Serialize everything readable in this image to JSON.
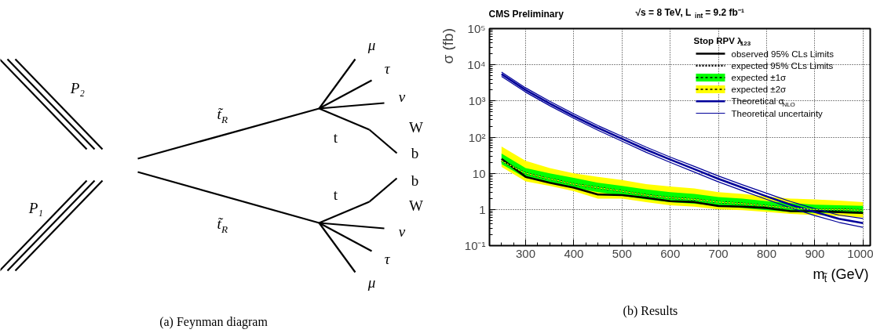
{
  "chart_data": [
    {
      "type": "other",
      "title": "(a) Feynman diagram",
      "annotations": [
        "P₂",
        "P₁",
        "t̃$_{R}$",
        "t̃$_{R}$",
        "μ",
        "τ",
        "ν",
        "W",
        "t",
        "b",
        "b",
        "t",
        "W",
        "ν",
        "τ",
        "μ"
      ]
    },
    {
      "type": "line",
      "title": "CMS Preliminary",
      "subtitle": "√s = 8 TeV, L$_{int}$ = 9.2 fb⁻¹",
      "annotations": [
        "(b) Results"
      ],
      "xlabel": "m$_{t̃}$ (GeV)",
      "ylabel": "σ (fb)",
      "legend_title": "Stop RPV λ$_{123}$",
      "x": [
        250,
        300,
        350,
        400,
        450,
        500,
        550,
        600,
        650,
        700,
        750,
        800,
        850,
        900,
        950,
        1000
      ],
      "log": "y",
      "grid": true,
      "legend": "top right",
      "xlim": [
        225,
        1015
      ],
      "xticks": [
        300,
        400,
        500,
        600,
        700,
        800,
        900,
        1000
      ],
      "ylim": [
        0.1,
        100000
      ],
      "yticks": [
        {
          "value": 0.1,
          "label": "10⁻¹"
        },
        1,
        10,
        {
          "value": 100,
          "label": "10²"
        },
        {
          "value": 1000,
          "label": "10³"
        },
        {
          "value": 10000,
          "label": "10⁴"
        },
        {
          "value": 100000,
          "label": "10⁵"
        }
      ],
      "series": [
        {
          "name": "observed 95% CLs Limits",
          "type": "line",
          "color": "#000000",
          "line_style": "solid",
          "values": [
            25,
            8,
            5.5,
            4,
            2.6,
            2.5,
            2.1,
            1.7,
            1.6,
            1.25,
            1.2,
            1.1,
            0.9,
            0.9,
            0.85,
            0.8
          ]
        },
        {
          "name": "expected 95% CLs Limits",
          "type": "line",
          "color": "#000000",
          "line_style": "dotted",
          "values": [
            22,
            10,
            7,
            5,
            4,
            3.2,
            2.5,
            2.1,
            1.9,
            1.6,
            1.45,
            1.25,
            1.1,
            1.0,
            1.0,
            0.95
          ]
        },
        {
          "name": "expected ±1σ",
          "type": "line",
          "color": "#00ff00",
          "line_style": "dotted",
          "values": [
            22,
            10,
            7,
            5,
            4,
            3.2,
            2.5,
            2.1,
            1.9,
            1.6,
            1.45,
            1.25,
            1.1,
            1.0,
            1.0,
            0.95
          ],
          "lower": [
            18,
            7.5,
            5.5,
            4,
            3,
            2.4,
            1.9,
            1.6,
            1.45,
            1.25,
            1.1,
            0.95,
            0.85,
            0.8,
            0.8,
            0.75
          ],
          "upper": [
            35,
            14,
            10,
            7.5,
            5.5,
            4.5,
            3.6,
            3.0,
            2.7,
            2.2,
            2.0,
            1.7,
            1.5,
            1.35,
            1.3,
            1.25
          ]
        },
        {
          "name": "expected ±2σ",
          "type": "line",
          "color": "#ffff00",
          "line_style": "dotted",
          "values": [
            22,
            10,
            7,
            5,
            4,
            3.2,
            2.5,
            2.1,
            1.9,
            1.6,
            1.45,
            1.25,
            1.1,
            1.0,
            1.0,
            0.95
          ],
          "lower": [
            15,
            6,
            4.5,
            3.2,
            2,
            2,
            1.6,
            1.3,
            1.2,
            1.0,
            0.95,
            0.85,
            0.75,
            0.7,
            0.65,
            0.6
          ],
          "upper": [
            55,
            22,
            14,
            10,
            8,
            6.5,
            5,
            4.3,
            3.8,
            3.0,
            2.7,
            2.3,
            2.0,
            1.9,
            1.75,
            1.6
          ]
        },
        {
          "name": "Theoretical σ$_{NLO}$",
          "type": "line",
          "color": "#000099",
          "line_style": "solid",
          "values": [
            5500,
            2000,
            850,
            380,
            180,
            90,
            45,
            24,
            13,
            7,
            4,
            2.3,
            1.35,
            0.85,
            0.55,
            0.42
          ]
        },
        {
          "name": "Theoretical uncertainty",
          "type": "line",
          "color": "#000099",
          "line_style": "solid",
          "values": [
            6300,
            2300,
            980,
            440,
            208,
            105,
            53,
            28,
            15.5,
            8.4,
            4.8,
            2.8,
            1.65,
            1.05,
            0.7,
            0.56
          ]
        },
        {
          "type": "line",
          "color": "#000099",
          "line_style": "solid",
          "values": [
            4800,
            1750,
            740,
            330,
            155,
            77,
            38,
            20,
            10.8,
            5.8,
            3.3,
            1.9,
            1.1,
            0.68,
            0.44,
            0.32
          ]
        }
      ]
    }
  ]
}
